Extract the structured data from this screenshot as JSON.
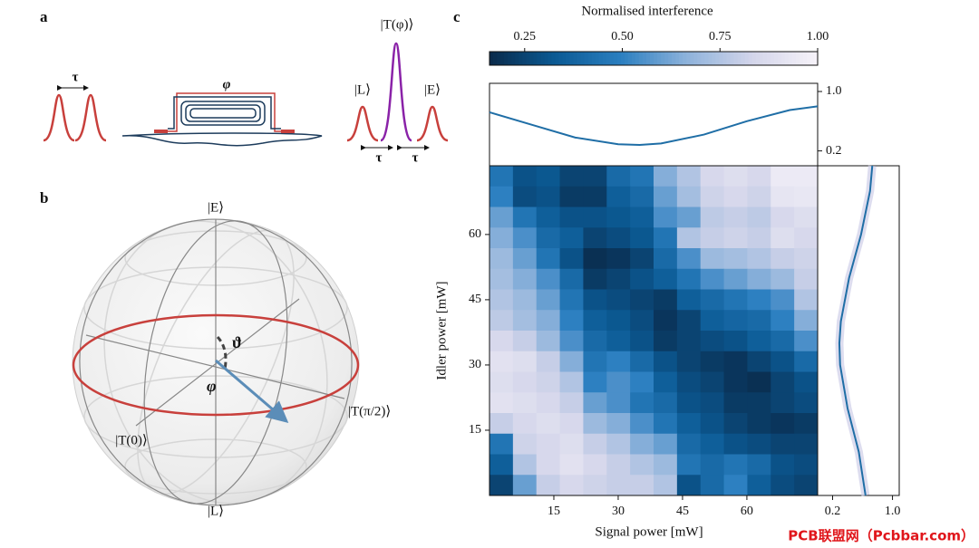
{
  "panel_labels": [
    "a",
    "b",
    "c"
  ],
  "diagram_a": {
    "delay_left": "τ",
    "phase": "φ",
    "output": "|T(φ)⟩",
    "late": "|L⟩",
    "early": "|E⟩",
    "delay_1": "τ",
    "delay_2": "τ"
  },
  "diagram_b": {
    "top": "|E⟩",
    "bottom": "|L⟩",
    "theta": "ϑ",
    "phi": "φ",
    "t0": "|T(0)⟩",
    "tpi2": "|T(π/2)⟩"
  },
  "watermark": "PCB联盟网（Pcbbar.com）",
  "chart_data": [
    {
      "type": "heatmap",
      "xlabel": "Signal power [mW]",
      "ylabel": "Idler power [mW]",
      "colorbar_title": "Normalised interference",
      "xlim": [
        0,
        76.5
      ],
      "ylim": [
        0,
        75.8
      ],
      "xticks": [
        15,
        30,
        45,
        60
      ],
      "yticks": [
        15,
        30,
        45,
        60
      ],
      "clim": [
        0.16,
        1.0
      ],
      "cticks": [
        0.25,
        {
          "value": 0.5,
          "label": "0.50"
        },
        0.75,
        {
          "value": 1.0,
          "label": "1.00"
        }
      ],
      "colormap": [
        "#0a2a4a",
        "#0b5a94",
        "#2b7fc0",
        "#8db2db",
        "#d3d5ea",
        "#f7f3f9"
      ],
      "z": [
        [
          0.45,
          0.3,
          0.32,
          0.25,
          0.25,
          0.4,
          0.45,
          0.65,
          0.75,
          0.85,
          0.88,
          0.85,
          0.95,
          0.95
        ],
        [
          0.5,
          0.28,
          0.3,
          0.22,
          0.22,
          0.35,
          0.4,
          0.6,
          0.72,
          0.82,
          0.85,
          0.82,
          0.92,
          0.93
        ],
        [
          0.6,
          0.45,
          0.35,
          0.3,
          0.3,
          0.32,
          0.35,
          0.55,
          0.6,
          0.78,
          0.8,
          0.78,
          0.85,
          0.88
        ],
        [
          0.65,
          0.55,
          0.4,
          0.35,
          0.25,
          0.28,
          0.32,
          0.45,
          0.75,
          0.8,
          0.82,
          0.8,
          0.88,
          0.85
        ],
        [
          0.7,
          0.6,
          0.45,
          0.3,
          0.18,
          0.2,
          0.25,
          0.4,
          0.55,
          0.7,
          0.72,
          0.75,
          0.8,
          0.82
        ],
        [
          0.72,
          0.65,
          0.55,
          0.4,
          0.22,
          0.25,
          0.3,
          0.35,
          0.45,
          0.55,
          0.6,
          0.65,
          0.7,
          0.8
        ],
        [
          0.75,
          0.7,
          0.6,
          0.45,
          0.3,
          0.28,
          0.25,
          0.22,
          0.35,
          0.4,
          0.45,
          0.5,
          0.55,
          0.75
        ],
        [
          0.78,
          0.72,
          0.65,
          0.5,
          0.35,
          0.32,
          0.28,
          0.2,
          0.25,
          0.35,
          0.38,
          0.4,
          0.5,
          0.65
        ],
        [
          0.85,
          0.8,
          0.7,
          0.55,
          0.4,
          0.35,
          0.3,
          0.22,
          0.25,
          0.28,
          0.3,
          0.35,
          0.4,
          0.55
        ],
        [
          0.9,
          0.88,
          0.8,
          0.65,
          0.45,
          0.5,
          0.4,
          0.3,
          0.25,
          0.22,
          0.2,
          0.25,
          0.3,
          0.4
        ],
        [
          0.88,
          0.85,
          0.82,
          0.75,
          0.5,
          0.55,
          0.5,
          0.35,
          0.28,
          0.25,
          0.2,
          0.18,
          0.25,
          0.3
        ],
        [
          0.9,
          0.88,
          0.85,
          0.8,
          0.6,
          0.55,
          0.45,
          0.4,
          0.3,
          0.28,
          0.22,
          0.22,
          0.25,
          0.28
        ],
        [
          0.8,
          0.85,
          0.88,
          0.85,
          0.7,
          0.65,
          0.55,
          0.45,
          0.35,
          0.3,
          0.25,
          0.22,
          0.2,
          0.22
        ],
        [
          0.45,
          0.82,
          0.85,
          0.88,
          0.8,
          0.75,
          0.65,
          0.6,
          0.4,
          0.35,
          0.3,
          0.28,
          0.25,
          0.25
        ],
        [
          0.35,
          0.75,
          0.85,
          0.9,
          0.85,
          0.8,
          0.75,
          0.7,
          0.45,
          0.4,
          0.45,
          0.4,
          0.3,
          0.28
        ],
        [
          0.25,
          0.6,
          0.8,
          0.85,
          0.82,
          0.8,
          0.8,
          0.75,
          0.3,
          0.4,
          0.5,
          0.35,
          0.28,
          0.25
        ]
      ]
    },
    {
      "type": "line",
      "color": "#1f6ea6",
      "x": [
        0,
        10,
        20,
        30,
        35,
        40,
        50,
        60,
        70,
        76.5
      ],
      "values": [
        0.72,
        0.55,
        0.38,
        0.29,
        0.28,
        0.3,
        0.42,
        0.6,
        0.75,
        0.8
      ],
      "ylim": [
        0,
        1.11
      ],
      "yticks": [
        {
          "value": 1.0,
          "label": "1.0"
        },
        0.2
      ]
    },
    {
      "type": "hline",
      "color": "#1f6ea6",
      "y": [
        0,
        10,
        20,
        30,
        35,
        40,
        50,
        60,
        70,
        75.8
      ],
      "values": [
        0.64,
        0.55,
        0.4,
        0.3,
        0.29,
        0.31,
        0.42,
        0.58,
        0.7,
        0.73
      ],
      "xlim": [
        0,
        1.09
      ],
      "xticks": [
        0.2,
        {
          "value": 1.0,
          "label": "1.0"
        }
      ]
    }
  ]
}
